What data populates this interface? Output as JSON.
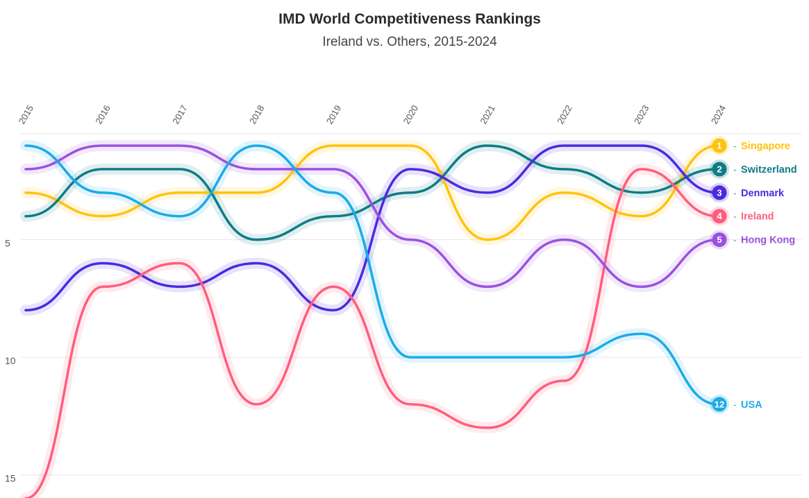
{
  "chart_data": {
    "type": "line",
    "title": "IMD World Competitiveness Rankings",
    "subtitle": "Ireland vs. Others, 2015-2024",
    "x": [
      "2015",
      "2016",
      "2017",
      "2018",
      "2019",
      "2020",
      "2021",
      "2022",
      "2023",
      "2024"
    ],
    "y_ticks": [
      "5",
      "10",
      "15"
    ],
    "ylim": [
      15.7,
      0.5
    ],
    "y_inverted": true,
    "grid": true,
    "legend_placement": "right, end labels",
    "series": [
      {
        "name": "Singapore",
        "rank_label": "1",
        "color": "#FFC20E",
        "values": [
          3,
          4,
          3,
          3,
          1,
          1,
          5,
          3,
          4,
          1
        ]
      },
      {
        "name": "Switzerland",
        "rank_label": "2",
        "color": "#0E7C86",
        "values": [
          4,
          2,
          2,
          5,
          4,
          3,
          1,
          2,
          3,
          2
        ]
      },
      {
        "name": "Denmark",
        "rank_label": "3",
        "color": "#4A2AE0",
        "values": [
          8,
          6,
          7,
          6,
          8,
          2,
          3,
          1,
          1,
          3
        ]
      },
      {
        "name": "Ireland",
        "rank_label": "4",
        "color": "#FF5D7D",
        "values": [
          16,
          7,
          6,
          12,
          7,
          12,
          13,
          11,
          2,
          4
        ]
      },
      {
        "name": "Hong Kong",
        "rank_label": "5",
        "color": "#9B51E0",
        "values": [
          2,
          1,
          1,
          2,
          2,
          5,
          7,
          5,
          7,
          5
        ]
      },
      {
        "name": "USA",
        "rank_label": "12",
        "color": "#1BAAE8",
        "values": [
          1,
          3,
          4,
          1,
          3,
          10,
          10,
          10,
          9,
          12
        ]
      }
    ]
  }
}
